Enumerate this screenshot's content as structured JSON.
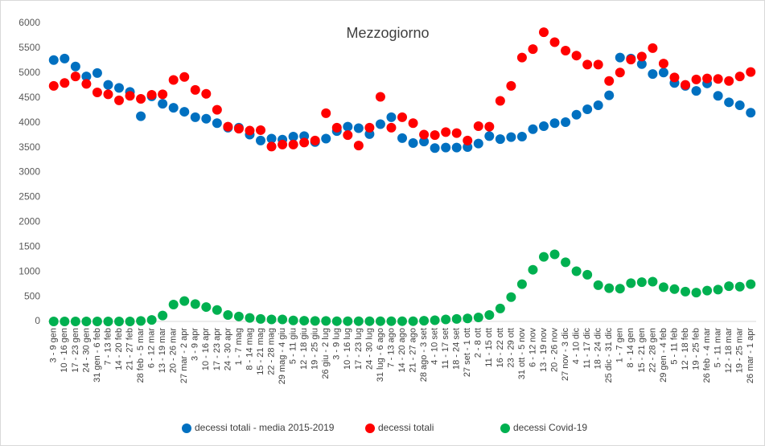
{
  "chart_data": {
    "type": "scatter",
    "title": "Mezzogiorno",
    "categories": [
      "3 - 9 gen",
      "10 - 16 gen",
      "17 - 23 gen",
      "24 - 30 gen",
      "31 gen - 6 feb",
      "7 - 13 feb",
      "14 - 20 feb",
      "21 - 27 feb",
      "28 feb - 5 mar",
      "6 - 12 mar",
      "13 - 19 mar",
      "20 - 26 mar",
      "27 mar - 2 apr",
      "3 - 9 apr",
      "10 - 16 apr",
      "17 - 23 apr",
      "24 - 30 apr",
      "1 - 7 mag",
      "8 - 14 mag",
      "15 - 21 mag",
      "22 - 28 mag",
      "29 mag - 4 giu",
      "5 - 11 giu",
      "12 - 18 giu",
      "19 - 25 giu",
      "26 giu - 2 lug",
      "3 - 9 lug",
      "10 - 16 lug",
      "17 - 23 lug",
      "24 - 30 lug",
      "31 lug - 6 ago",
      "7 - 13 ago",
      "14 - 20 ago",
      "21 - 27 ago",
      "28 ago - 3 set",
      "4 - 10 set",
      "11 - 17 set",
      "18 - 24 set",
      "27 set - 1 ott",
      "2 - 8 ott",
      "11 - 15 ott",
      "16 - 22 ott",
      "23 - 29 ott",
      "31 ott - 5 nov",
      "6 - 12 nov",
      "13 - 19 nov",
      "20 - 26 nov",
      "27 nov - 3 dic",
      "4 - 10 dic",
      "11 - 17 dic",
      "18 - 24 dic",
      "25 dic - 31 dic",
      "1 - 7 gen",
      "8 - 14 gen",
      "15 - 21 gen",
      "22 - 28 gen",
      "29 gen - 4 feb",
      "5 - 11 feb",
      "12 - 18 feb",
      "19 - 25 feb",
      "26 feb - 4 mar",
      "5 - 11 mar",
      "12 - 18 mar",
      "19 - 25 mar",
      "26 mar - 1 apr"
    ],
    "series": [
      {
        "name": "decessi totali - media 2015-2019",
        "color": "#0070c0",
        "values": [
          5260,
          5290,
          5130,
          4930,
          5000,
          4760,
          4700,
          4620,
          4130,
          4530,
          4380,
          4300,
          4220,
          4110,
          4080,
          3990,
          3900,
          3900,
          3760,
          3640,
          3680,
          3660,
          3720,
          3730,
          3610,
          3680,
          3830,
          3920,
          3890,
          3770,
          3970,
          4110,
          3690,
          3590,
          3620,
          3490,
          3500,
          3500,
          3510,
          3580,
          3730,
          3670,
          3710,
          3720,
          3870,
          3930,
          3990,
          4010,
          4160,
          4270,
          4350,
          4550,
          5310,
          5290,
          5180,
          4980,
          5010,
          4800,
          4740,
          4640,
          4790,
          4540,
          4410,
          4350,
          4200
        ]
      },
      {
        "name": "decessi totali",
        "color": "#ff0000",
        "values": [
          4740,
          4800,
          4930,
          4780,
          4610,
          4570,
          4450,
          4540,
          4480,
          4560,
          4570,
          4860,
          4920,
          4660,
          4580,
          4260,
          3920,
          3880,
          3840,
          3850,
          3520,
          3560,
          3560,
          3600,
          3640,
          4190,
          3900,
          3750,
          3540,
          3900,
          4520,
          3900,
          4110,
          3990,
          3760,
          3750,
          3810,
          3790,
          3640,
          3930,
          3920,
          4440,
          4740,
          5310,
          5480,
          5820,
          5620,
          5450,
          5350,
          5170,
          5170,
          4840,
          5010,
          5270,
          5330,
          5500,
          5190,
          4910,
          4760,
          4870,
          4890,
          4880,
          4840,
          4930,
          5020
        ]
      },
      {
        "name": "decessi Covid-19",
        "color": "#00b050",
        "values": [
          0,
          0,
          0,
          0,
          0,
          0,
          0,
          0,
          10,
          30,
          120,
          340,
          410,
          350,
          290,
          230,
          130,
          100,
          70,
          50,
          40,
          40,
          20,
          15,
          10,
          10,
          5,
          5,
          5,
          5,
          5,
          5,
          5,
          5,
          15,
          25,
          40,
          50,
          60,
          80,
          130,
          260,
          490,
          750,
          1040,
          1300,
          1350,
          1190,
          1010,
          940,
          730,
          670,
          660,
          770,
          790,
          800,
          690,
          650,
          600,
          580,
          620,
          640,
          710,
          700,
          750
        ]
      }
    ],
    "ylim": [
      0,
      6000
    ],
    "yticks": [
      0,
      500,
      1000,
      1500,
      2000,
      2500,
      3000,
      3500,
      4000,
      4500,
      5000,
      5500,
      6000
    ],
    "grid": false,
    "legend": "bottom"
  }
}
